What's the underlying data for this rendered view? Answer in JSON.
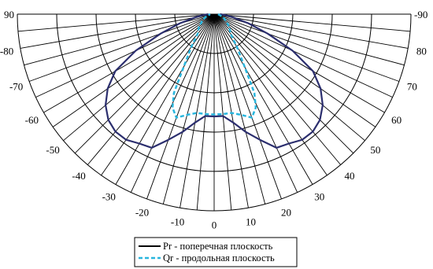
{
  "chart_data": {
    "type": "line",
    "coordinate_system": "polar",
    "angle_unit": "degrees",
    "angular_range": [
      -90,
      90
    ],
    "angular_step": 5,
    "radial_rings": 5,
    "grid": true,
    "legend_placement": "bottom-center",
    "angle_tick_labels": [
      "90",
      "80",
      "70",
      "60",
      "50",
      "40",
      "30",
      "20",
      "10",
      "0",
      "-10",
      "-20",
      "-30",
      "-40",
      "-50",
      "-60",
      "-70",
      "-80",
      "-90"
    ],
    "series": [
      {
        "name": "Pr - поперечная плоскость",
        "color": "#2b2e6e",
        "line_style": "solid",
        "points": [
          {
            "angle": 90,
            "r": 0.03
          },
          {
            "angle": 85,
            "r": 0.06
          },
          {
            "angle": 80,
            "r": 0.1
          },
          {
            "angle": 75,
            "r": 0.18
          },
          {
            "angle": 70,
            "r": 0.29
          },
          {
            "angle": 65,
            "r": 0.44
          },
          {
            "angle": 60,
            "r": 0.58
          },
          {
            "angle": 55,
            "r": 0.66
          },
          {
            "angle": 50,
            "r": 0.72
          },
          {
            "angle": 45,
            "r": 0.76
          },
          {
            "angle": 40,
            "r": 0.78
          },
          {
            "angle": 35,
            "r": 0.78
          },
          {
            "angle": 30,
            "r": 0.76
          },
          {
            "angle": 25,
            "r": 0.75
          },
          {
            "angle": 20,
            "r": 0.68
          },
          {
            "angle": 15,
            "r": 0.62
          },
          {
            "angle": 10,
            "r": 0.56
          },
          {
            "angle": 5,
            "r": 0.52
          },
          {
            "angle": 0,
            "r": 0.52
          },
          {
            "angle": -5,
            "r": 0.52
          },
          {
            "angle": -10,
            "r": 0.56
          },
          {
            "angle": -15,
            "r": 0.62
          },
          {
            "angle": -20,
            "r": 0.68
          },
          {
            "angle": -25,
            "r": 0.75
          },
          {
            "angle": -30,
            "r": 0.76
          },
          {
            "angle": -35,
            "r": 0.78
          },
          {
            "angle": -40,
            "r": 0.78
          },
          {
            "angle": -45,
            "r": 0.76
          },
          {
            "angle": -50,
            "r": 0.72
          },
          {
            "angle": -55,
            "r": 0.66
          },
          {
            "angle": -60,
            "r": 0.58
          },
          {
            "angle": -65,
            "r": 0.44
          },
          {
            "angle": -70,
            "r": 0.29
          },
          {
            "angle": -75,
            "r": 0.18
          },
          {
            "angle": -80,
            "r": 0.1
          },
          {
            "angle": -85,
            "r": 0.06
          },
          {
            "angle": -90,
            "r": 0.03
          }
        ]
      },
      {
        "name": "Qr - продольная плоскость",
        "color": "#29b6de",
        "line_style": "dashed",
        "points": [
          {
            "angle": 90,
            "r": 0.02
          },
          {
            "angle": 80,
            "r": 0.03
          },
          {
            "angle": 70,
            "r": 0.05
          },
          {
            "angle": 60,
            "r": 0.07
          },
          {
            "angle": 50,
            "r": 0.1
          },
          {
            "angle": 40,
            "r": 0.13
          },
          {
            "angle": 35,
            "r": 0.2
          },
          {
            "angle": 30,
            "r": 0.31
          },
          {
            "angle": 27,
            "r": 0.45
          },
          {
            "angle": 24,
            "r": 0.52
          },
          {
            "angle": 20,
            "r": 0.56
          },
          {
            "angle": 15,
            "r": 0.53
          },
          {
            "angle": 10,
            "r": 0.51
          },
          {
            "angle": 5,
            "r": 0.51
          },
          {
            "angle": 0,
            "r": 0.51
          },
          {
            "angle": -5,
            "r": 0.51
          },
          {
            "angle": -10,
            "r": 0.51
          },
          {
            "angle": -15,
            "r": 0.53
          },
          {
            "angle": -20,
            "r": 0.56
          },
          {
            "angle": -24,
            "r": 0.52
          },
          {
            "angle": -27,
            "r": 0.45
          },
          {
            "angle": -30,
            "r": 0.31
          },
          {
            "angle": -35,
            "r": 0.2
          },
          {
            "angle": -40,
            "r": 0.13
          },
          {
            "angle": -50,
            "r": 0.1
          },
          {
            "angle": -60,
            "r": 0.07
          },
          {
            "angle": -70,
            "r": 0.05
          },
          {
            "angle": -80,
            "r": 0.03
          },
          {
            "angle": -90,
            "r": 0.02
          }
        ]
      }
    ],
    "legend": {
      "entries": [
        {
          "label": "Pr - поперечная плоскость",
          "color": "#000000",
          "line_style": "solid"
        },
        {
          "label": "Qr - продольная плоскость",
          "color": "#29b6de",
          "line_style": "dashed"
        }
      ]
    }
  }
}
